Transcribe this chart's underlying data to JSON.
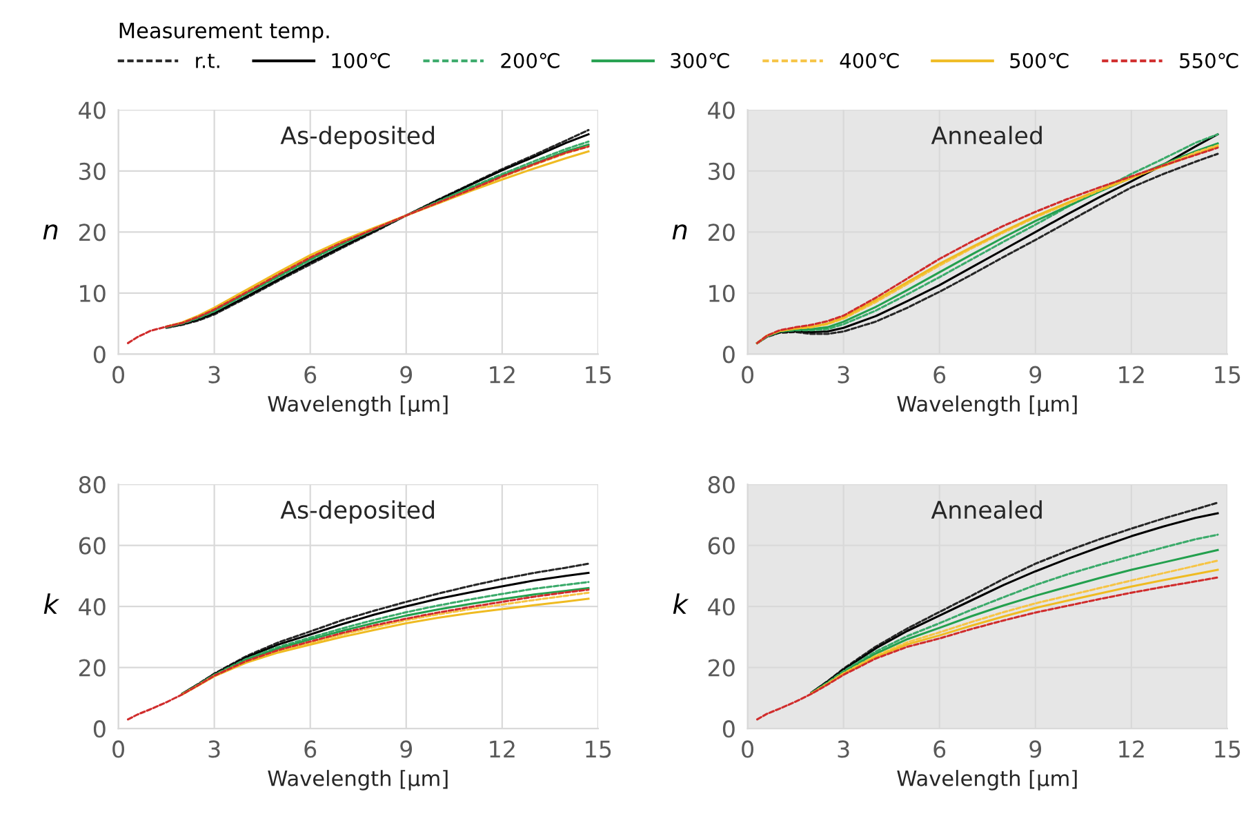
{
  "chart_data": [
    {
      "type": "line",
      "title": "As-deposited",
      "xlabel": "Wavelength [µm]",
      "ylabel": "n",
      "legend": "top",
      "legend_title": "Measurement temp.",
      "grid": true,
      "xlim": [
        0,
        15
      ],
      "xticks": [
        0,
        3,
        6,
        9,
        12,
        15
      ],
      "ylim": [
        0,
        40
      ],
      "yticks": [
        0,
        10,
        20,
        30,
        40
      ],
      "x": [
        0.3,
        0.6,
        1,
        1.5,
        2,
        2.5,
        3,
        4,
        5,
        6,
        7,
        8,
        9,
        10,
        11,
        12,
        13,
        14,
        14.7
      ],
      "series": [
        {
          "name": "r.t.",
          "color": "#262626",
          "line_style": "dashed",
          "values": [
            null,
            null,
            null,
            4.3,
            4.8,
            5.5,
            6.5,
            9.2,
            12.0,
            14.7,
            17.4,
            20.0,
            22.7,
            25.3,
            27.8,
            30.3,
            32.6,
            35.0,
            36.7
          ]
        },
        {
          "name": "100℃",
          "color": "#000000",
          "line_style": "solid",
          "values": [
            null,
            null,
            null,
            4.4,
            4.9,
            5.7,
            6.7,
            9.4,
            12.2,
            15.0,
            17.6,
            20.2,
            22.7,
            25.2,
            27.7,
            30.1,
            32.3,
            34.6,
            36.0
          ]
        },
        {
          "name": "200℃",
          "color": "#3aaa6a",
          "line_style": "dashed",
          "values": [
            null,
            null,
            null,
            4.4,
            5.0,
            5.9,
            7.0,
            9.8,
            12.6,
            15.4,
            18.0,
            20.4,
            22.7,
            25.0,
            27.3,
            29.5,
            31.6,
            33.6,
            34.8
          ]
        },
        {
          "name": "300℃",
          "color": "#23a04e",
          "line_style": "solid",
          "values": [
            null,
            null,
            null,
            4.5,
            5.1,
            6.0,
            7.2,
            10.0,
            12.8,
            15.6,
            18.1,
            20.5,
            22.7,
            24.9,
            27.1,
            29.2,
            31.2,
            33.2,
            34.3
          ]
        },
        {
          "name": "400℃",
          "color": "#f6c445",
          "line_style": "dashed",
          "values": [
            null,
            null,
            null,
            null,
            null,
            6.2,
            7.5,
            10.3,
            13.2,
            16.0,
            18.4,
            20.6,
            22.7,
            24.8,
            26.9,
            29.0,
            31.0,
            32.9,
            34.0
          ]
        },
        {
          "name": "500℃",
          "color": "#efbb22",
          "line_style": "solid",
          "values": [
            null,
            null,
            null,
            4.5,
            5.2,
            6.3,
            7.6,
            10.5,
            13.4,
            16.2,
            18.6,
            20.7,
            22.7,
            24.7,
            26.7,
            28.6,
            30.4,
            32.1,
            33.2
          ]
        },
        {
          "name": "550℃",
          "color": "#d02c2c",
          "line_style": "dashed",
          "values": [
            1.8,
            2.8,
            3.8,
            4.5,
            5.1,
            6.1,
            7.3,
            10.1,
            13.0,
            15.8,
            18.3,
            20.5,
            22.7,
            24.8,
            26.9,
            29.1,
            31.1,
            33.0,
            34.0
          ]
        }
      ]
    },
    {
      "type": "line",
      "title": "Annealed",
      "xlabel": "Wavelength [µm]",
      "ylabel": "n",
      "grid": true,
      "xlim": [
        0,
        15
      ],
      "xticks": [
        0,
        3,
        6,
        9,
        12,
        15
      ],
      "ylim": [
        0,
        40
      ],
      "yticks": [
        0,
        10,
        20,
        30,
        40
      ],
      "bands": [
        {
          "axis": "x",
          "from": 0,
          "to": 15,
          "color": "#e6e6e6"
        }
      ],
      "x": [
        0.3,
        0.6,
        1,
        1.5,
        2,
        2.5,
        3,
        4,
        5,
        6,
        7,
        8,
        9,
        10,
        11,
        12,
        13,
        14,
        14.7
      ],
      "series": [
        {
          "color": "#262626",
          "line_style": "dashed",
          "values": [
            1.8,
            2.8,
            3.5,
            3.6,
            3.3,
            3.3,
            3.7,
            5.3,
            7.6,
            10.2,
            13.0,
            15.9,
            18.7,
            21.6,
            24.5,
            27.3,
            29.5,
            31.5,
            32.8
          ]
        },
        {
          "color": "#000000",
          "line_style": "solid",
          "values": [
            1.8,
            2.9,
            3.6,
            3.8,
            3.6,
            3.7,
            4.3,
            6.2,
            8.7,
            11.3,
            14.2,
            17.1,
            20.0,
            22.9,
            25.7,
            28.3,
            31.0,
            34.0,
            36.0
          ]
        },
        {
          "color": "#3aaa6a",
          "line_style": "dashed",
          "values": [
            1.8,
            2.9,
            3.7,
            3.9,
            3.9,
            4.1,
            4.9,
            7.1,
            9.8,
            12.6,
            15.5,
            18.4,
            21.2,
            24.1,
            26.8,
            29.5,
            32.0,
            34.6,
            36.0
          ]
        },
        {
          "color": "#23a04e",
          "line_style": "solid",
          "values": [
            1.8,
            2.9,
            3.7,
            4.0,
            4.1,
            4.4,
            5.3,
            7.7,
            10.5,
            13.4,
            16.3,
            19.1,
            21.8,
            24.2,
            26.6,
            28.9,
            31.1,
            33.2,
            34.5
          ]
        },
        {
          "color": "#f6c445",
          "line_style": "dashed",
          "values": [
            1.8,
            3.0,
            3.8,
            4.2,
            4.4,
            4.9,
            5.8,
            8.5,
            11.5,
            14.5,
            17.3,
            19.9,
            22.4,
            24.6,
            26.8,
            28.8,
            30.9,
            33.0,
            34.2
          ]
        },
        {
          "color": "#efbb22",
          "line_style": "solid",
          "values": [
            1.8,
            3.0,
            3.8,
            4.2,
            4.5,
            5.0,
            6.0,
            8.8,
            11.8,
            14.8,
            17.5,
            20.1,
            22.6,
            24.8,
            26.9,
            28.9,
            30.8,
            32.7,
            34.0
          ]
        },
        {
          "color": "#d02c2c",
          "line_style": "dashed",
          "values": [
            1.8,
            3.0,
            3.9,
            4.4,
            4.8,
            5.4,
            6.3,
            9.2,
            12.4,
            15.6,
            18.4,
            21.0,
            23.3,
            25.4,
            27.3,
            29.1,
            30.9,
            32.6,
            33.8
          ]
        }
      ]
    },
    {
      "type": "line",
      "title": "As-deposited",
      "xlabel": "Wavelength [µm]",
      "ylabel": "k",
      "grid": true,
      "xlim": [
        0,
        15
      ],
      "xticks": [
        0,
        3,
        6,
        9,
        12,
        15
      ],
      "ylim": [
        0,
        80
      ],
      "yticks": [
        0,
        20,
        40,
        60,
        80
      ],
      "x": [
        0.3,
        0.6,
        1,
        1.5,
        2,
        2.5,
        3,
        4,
        5,
        6,
        7,
        8,
        9,
        10,
        11,
        12,
        13,
        14,
        14.7
      ],
      "series": [
        {
          "color": "#262626",
          "line_style": "dashed",
          "values": [
            null,
            null,
            null,
            null,
            11.4,
            14.6,
            18.0,
            23.7,
            28.2,
            31.8,
            35.5,
            38.6,
            41.5,
            44.2,
            46.7,
            49.0,
            51.0,
            52.7,
            54.0
          ]
        },
        {
          "color": "#000000",
          "line_style": "solid",
          "values": [
            null,
            null,
            null,
            null,
            11.4,
            14.5,
            17.8,
            23.3,
            27.5,
            30.8,
            34.2,
            37.3,
            40.0,
            42.5,
            44.6,
            46.6,
            48.5,
            50.0,
            51.0
          ]
        },
        {
          "color": "#3aaa6a",
          "line_style": "dashed",
          "values": [
            null,
            null,
            null,
            null,
            11.3,
            14.4,
            17.6,
            22.8,
            26.7,
            29.8,
            32.8,
            35.6,
            38.1,
            40.3,
            42.3,
            44.1,
            45.8,
            47.1,
            48.0
          ]
        },
        {
          "color": "#23a04e",
          "line_style": "solid",
          "values": [
            null,
            null,
            null,
            null,
            11.3,
            14.3,
            17.5,
            22.4,
            26.2,
            29.2,
            32.0,
            34.6,
            37.0,
            39.0,
            40.8,
            42.4,
            43.9,
            45.1,
            46.0
          ]
        },
        {
          "color": "#f6c445",
          "line_style": "dashed",
          "values": [
            null,
            null,
            null,
            null,
            11.2,
            14.2,
            17.3,
            22.0,
            25.4,
            28.1,
            30.8,
            33.2,
            35.5,
            37.4,
            39.1,
            40.6,
            42.1,
            43.5,
            44.5
          ]
        },
        {
          "color": "#efbb22",
          "line_style": "solid",
          "values": [
            null,
            null,
            null,
            null,
            11.2,
            14.1,
            17.1,
            21.6,
            24.9,
            27.5,
            30.0,
            32.3,
            34.5,
            36.3,
            37.8,
            39.1,
            40.4,
            41.6,
            42.5
          ]
        },
        {
          "color": "#d02c2c",
          "line_style": "dashed",
          "values": [
            3.0,
            4.6,
            6.3,
            8.6,
            11.2,
            14.2,
            17.3,
            22.1,
            25.7,
            28.5,
            31.3,
            33.8,
            36.0,
            38.0,
            39.8,
            41.5,
            43.2,
            44.6,
            45.5
          ]
        }
      ]
    },
    {
      "type": "line",
      "title": "Annealed",
      "xlabel": "Wavelength [µm]",
      "ylabel": "k",
      "grid": true,
      "xlim": [
        0,
        15
      ],
      "xticks": [
        0,
        3,
        6,
        9,
        12,
        15
      ],
      "ylim": [
        0,
        80
      ],
      "yticks": [
        0,
        20,
        40,
        60,
        80
      ],
      "bands": [
        {
          "axis": "x",
          "from": 0,
          "to": 15,
          "color": "#e6e6e6"
        }
      ],
      "x": [
        0.3,
        0.6,
        1,
        1.5,
        2,
        2.5,
        3,
        4,
        5,
        6,
        7,
        8,
        9,
        10,
        11,
        12,
        13,
        14,
        14.7
      ],
      "series": [
        {
          "color": "#262626",
          "line_style": "dashed",
          "values": [
            null,
            null,
            null,
            null,
            11.8,
            15.5,
            19.6,
            26.8,
            32.8,
            38.2,
            43.5,
            49.0,
            54.0,
            58.2,
            62.0,
            65.5,
            68.8,
            71.8,
            74.0
          ]
        },
        {
          "color": "#000000",
          "line_style": "solid",
          "values": [
            null,
            null,
            null,
            null,
            11.8,
            15.4,
            19.3,
            26.2,
            32.0,
            37.0,
            42.0,
            47.0,
            51.5,
            55.6,
            59.4,
            63.0,
            66.2,
            69.0,
            70.5
          ]
        },
        {
          "color": "#3aaa6a",
          "line_style": "dashed",
          "values": [
            null,
            null,
            null,
            null,
            11.7,
            15.1,
            18.8,
            25.2,
            30.3,
            34.5,
            38.9,
            43.0,
            47.0,
            50.5,
            53.6,
            56.5,
            59.3,
            62.0,
            63.5
          ]
        },
        {
          "color": "#23a04e",
          "line_style": "solid",
          "values": [
            null,
            null,
            null,
            null,
            11.6,
            14.9,
            18.4,
            24.5,
            29.3,
            33.0,
            36.8,
            40.3,
            43.5,
            46.4,
            49.3,
            52.0,
            54.4,
            56.8,
            58.5
          ]
        },
        {
          "color": "#f6c445",
          "line_style": "dashed",
          "values": [
            null,
            null,
            null,
            null,
            11.5,
            14.7,
            18.1,
            23.8,
            28.3,
            31.5,
            34.9,
            38.1,
            41.0,
            43.5,
            46.0,
            48.5,
            50.9,
            53.3,
            55.0
          ]
        },
        {
          "color": "#efbb22",
          "line_style": "solid",
          "values": [
            null,
            null,
            null,
            null,
            11.5,
            14.6,
            17.9,
            23.4,
            27.6,
            30.5,
            33.7,
            36.7,
            39.5,
            41.9,
            44.2,
            46.5,
            48.6,
            50.6,
            52.0
          ]
        },
        {
          "color": "#d02c2c",
          "line_style": "dashed",
          "values": [
            3.0,
            4.8,
            6.5,
            8.8,
            11.4,
            14.4,
            17.6,
            22.9,
            26.8,
            29.5,
            32.6,
            35.4,
            38.0,
            40.2,
            42.4,
            44.5,
            46.4,
            48.2,
            49.5
          ]
        }
      ]
    }
  ]
}
